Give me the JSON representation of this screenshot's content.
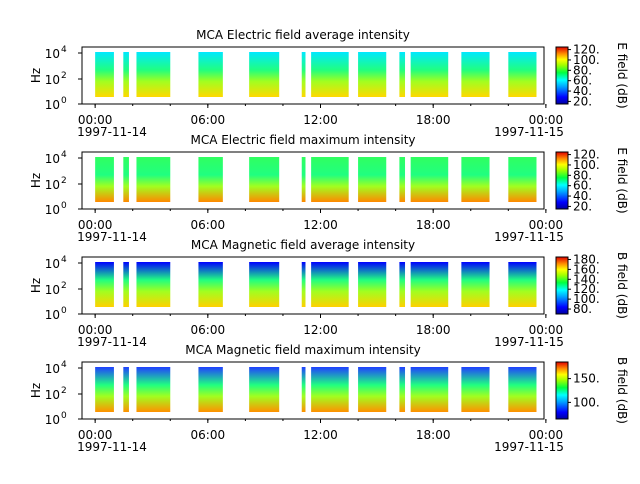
{
  "chart_data": [
    {
      "type": "heatmap",
      "title": "MCA  Electric field average intensity",
      "ylabel": "Hz",
      "y_ticks": [
        "10",
        "10",
        "10"
      ],
      "y_exps": [
        "0",
        "2",
        "4"
      ],
      "y_scale": "log",
      "y_range": [
        1,
        20000
      ],
      "x_tick_labels": [
        "00:00",
        "06:00",
        "12:00",
        "18:00",
        "00:00"
      ],
      "x_dates": [
        "1997-11-14",
        "1997-11-15"
      ],
      "colorbar_label": "E field (dB)",
      "colorbar_ticks": [
        "120.",
        "100.",
        "80.",
        "60.",
        "40.",
        "20."
      ],
      "colorbar_range": [
        15,
        125
      ],
      "data_intervals_hours": [
        [
          0.0,
          1.0
        ],
        [
          1.5,
          1.8
        ],
        [
          2.2,
          4.0
        ],
        [
          5.5,
          6.8
        ],
        [
          8.2,
          9.8
        ],
        [
          11.0,
          11.2
        ],
        [
          11.5,
          13.5
        ],
        [
          14.0,
          15.5
        ],
        [
          16.2,
          16.5
        ],
        [
          16.8,
          18.8
        ],
        [
          19.5,
          21.0
        ],
        [
          22.0,
          23.5
        ]
      ],
      "low_band_color": "#ffd800",
      "high_band_color": "#00e8ff"
    },
    {
      "type": "heatmap",
      "title": "MCA  Electric field maximum intensity",
      "ylabel": "Hz",
      "y_ticks": [
        "10",
        "10",
        "10"
      ],
      "y_exps": [
        "0",
        "2",
        "4"
      ],
      "y_scale": "log",
      "y_range": [
        1,
        20000
      ],
      "x_tick_labels": [
        "00:00",
        "06:00",
        "12:00",
        "18:00",
        "00:00"
      ],
      "x_dates": [
        "1997-11-14",
        "1997-11-15"
      ],
      "colorbar_label": "E field (dB)",
      "colorbar_ticks": [
        "120.",
        "100.",
        "80.",
        "60.",
        "40.",
        "20."
      ],
      "colorbar_range": [
        15,
        125
      ],
      "data_intervals_hours": [
        [
          0.0,
          1.0
        ],
        [
          1.5,
          1.8
        ],
        [
          2.2,
          4.0
        ],
        [
          5.5,
          6.8
        ],
        [
          8.2,
          9.8
        ],
        [
          11.0,
          11.2
        ],
        [
          11.5,
          13.5
        ],
        [
          14.0,
          15.5
        ],
        [
          16.2,
          16.5
        ],
        [
          16.8,
          18.8
        ],
        [
          19.5,
          21.0
        ],
        [
          22.0,
          23.5
        ]
      ],
      "low_band_color": "#ff8800",
      "high_band_color": "#30ff60"
    },
    {
      "type": "heatmap",
      "title": "MCA  Magnetic field average intensity",
      "ylabel": "Hz",
      "y_ticks": [
        "10",
        "10",
        "10"
      ],
      "y_exps": [
        "0",
        "2",
        "4"
      ],
      "y_scale": "log",
      "y_range": [
        1,
        20000
      ],
      "x_tick_labels": [
        "00:00",
        "06:00",
        "12:00",
        "18:00",
        "00:00"
      ],
      "x_dates": [
        "1997-11-14",
        "1997-11-15"
      ],
      "colorbar_label": "B field (dB)",
      "colorbar_ticks": [
        "180.",
        "160.",
        "140.",
        "120.",
        "100.",
        "80."
      ],
      "colorbar_range": [
        70,
        185
      ],
      "data_intervals_hours": [
        [
          0.0,
          1.0
        ],
        [
          1.5,
          1.8
        ],
        [
          2.2,
          4.0
        ],
        [
          5.5,
          6.8
        ],
        [
          8.2,
          9.8
        ],
        [
          11.0,
          11.2
        ],
        [
          11.5,
          13.5
        ],
        [
          14.0,
          15.5
        ],
        [
          16.2,
          16.5
        ],
        [
          16.8,
          18.8
        ],
        [
          19.5,
          21.0
        ],
        [
          22.0,
          23.5
        ]
      ],
      "low_band_color": "#ffd000",
      "high_band_color": "#0000ff"
    },
    {
      "type": "heatmap",
      "title": "MCA  Magnetic field maximum intensity",
      "ylabel": "Hz",
      "y_ticks": [
        "10",
        "10",
        "10"
      ],
      "y_exps": [
        "0",
        "2",
        "4"
      ],
      "y_scale": "log",
      "y_range": [
        1,
        20000
      ],
      "x_tick_labels": [
        "00:00",
        "06:00",
        "12:00",
        "18:00",
        "00:00"
      ],
      "x_dates": [
        "1997-11-14",
        "1997-11-15"
      ],
      "colorbar_label": "B field (dB)",
      "colorbar_ticks": [
        "150.",
        "100."
      ],
      "colorbar_range": [
        65,
        185
      ],
      "data_intervals_hours": [
        [
          0.0,
          1.0
        ],
        [
          1.5,
          1.8
        ],
        [
          2.2,
          4.0
        ],
        [
          5.5,
          6.8
        ],
        [
          8.2,
          9.8
        ],
        [
          11.0,
          11.2
        ],
        [
          11.5,
          13.5
        ],
        [
          14.0,
          15.5
        ],
        [
          16.2,
          16.5
        ],
        [
          16.8,
          18.8
        ],
        [
          19.5,
          21.0
        ],
        [
          22.0,
          23.5
        ]
      ],
      "low_band_color": "#ff9000",
      "high_band_color": "#2040ff"
    }
  ]
}
